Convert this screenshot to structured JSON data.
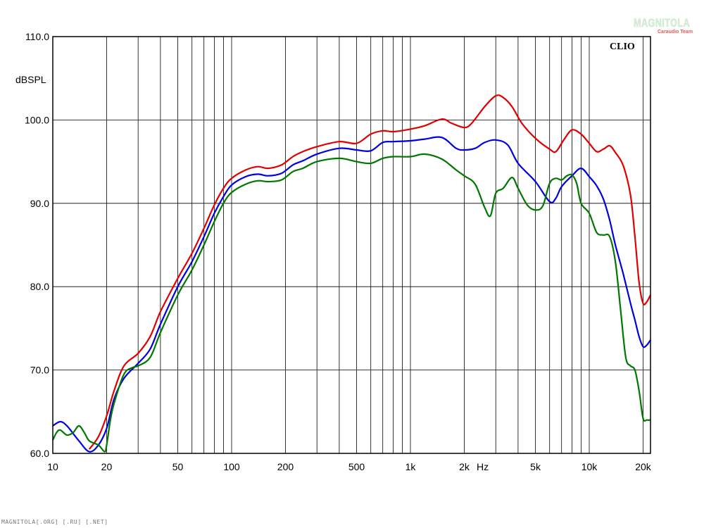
{
  "chart_data": {
    "type": "line",
    "brand": "CLIO",
    "ylabel": "dBSPL",
    "xunit": "Hz",
    "xscale": "log",
    "xlim": [
      10,
      22000
    ],
    "ylim": [
      60,
      110
    ],
    "grid": true,
    "y_ticks": [
      {
        "value": 60,
        "label": "60.0"
      },
      {
        "value": 70,
        "label": "70.0"
      },
      {
        "value": 80,
        "label": "80.0"
      },
      {
        "value": 90,
        "label": "90.0"
      },
      {
        "value": 100,
        "label": "100.0"
      },
      {
        "value": 110,
        "label": "110.0"
      }
    ],
    "x_ticks": [
      {
        "value": 10,
        "label": "10"
      },
      {
        "value": 20,
        "label": "20"
      },
      {
        "value": 50,
        "label": "50"
      },
      {
        "value": 100,
        "label": "100"
      },
      {
        "value": 200,
        "label": "200"
      },
      {
        "value": 500,
        "label": "500"
      },
      {
        "value": 1000,
        "label": "1k"
      },
      {
        "value": 2000,
        "label": "2k"
      },
      {
        "value": 5000,
        "label": "5k"
      },
      {
        "value": 10000,
        "label": "10k"
      },
      {
        "value": 20000,
        "label": "20k"
      }
    ],
    "x_gridlines": [
      20,
      30,
      40,
      50,
      60,
      70,
      80,
      90,
      100,
      200,
      300,
      400,
      500,
      600,
      700,
      800,
      900,
      1000,
      2000,
      3000,
      4000,
      5000,
      6000,
      7000,
      8000,
      9000,
      10000,
      20000
    ],
    "series": [
      {
        "color": "#e00000",
        "points": [
          [
            16,
            60.5
          ],
          [
            18,
            62
          ],
          [
            20,
            64.5
          ],
          [
            22,
            67.5
          ],
          [
            25,
            70.5
          ],
          [
            30,
            72
          ],
          [
            35,
            74
          ],
          [
            40,
            77
          ],
          [
            50,
            81
          ],
          [
            60,
            84
          ],
          [
            70,
            87
          ],
          [
            80,
            89.8
          ],
          [
            90,
            91.8
          ],
          [
            100,
            93
          ],
          [
            120,
            94
          ],
          [
            140,
            94.4
          ],
          [
            160,
            94.2
          ],
          [
            190,
            94.6
          ],
          [
            220,
            95.6
          ],
          [
            250,
            96.2
          ],
          [
            300,
            96.8
          ],
          [
            400,
            97.4
          ],
          [
            500,
            97.2
          ],
          [
            600,
            98.3
          ],
          [
            700,
            98.7
          ],
          [
            800,
            98.6
          ],
          [
            1000,
            98.9
          ],
          [
            1200,
            99.3
          ],
          [
            1500,
            100.1
          ],
          [
            1700,
            99.6
          ],
          [
            2000,
            99.1
          ],
          [
            2200,
            99.6
          ],
          [
            2600,
            101.6
          ],
          [
            3000,
            102.9
          ],
          [
            3300,
            102.7
          ],
          [
            3700,
            101.6
          ],
          [
            4200,
            99.6
          ],
          [
            5000,
            97.8
          ],
          [
            6000,
            96.5
          ],
          [
            6500,
            96.2
          ],
          [
            7200,
            97.6
          ],
          [
            8000,
            98.8
          ],
          [
            9000,
            98.3
          ],
          [
            10000,
            97.2
          ],
          [
            11000,
            96.2
          ],
          [
            12000,
            96.5
          ],
          [
            13000,
            96.9
          ],
          [
            14000,
            96.1
          ],
          [
            15500,
            94.5
          ],
          [
            17000,
            91
          ],
          [
            18000,
            86
          ],
          [
            19000,
            80.5
          ],
          [
            20000,
            78
          ],
          [
            21000,
            78.2
          ],
          [
            22000,
            79
          ]
        ]
      },
      {
        "color": "#0000e0",
        "points": [
          [
            10,
            63.3
          ],
          [
            11,
            63.8
          ],
          [
            12,
            63.3
          ],
          [
            14,
            61.5
          ],
          [
            16,
            60.2
          ],
          [
            18,
            61
          ],
          [
            20,
            63
          ],
          [
            22,
            66.5
          ],
          [
            25,
            69
          ],
          [
            30,
            70.8
          ],
          [
            35,
            72.5
          ],
          [
            40,
            75.5
          ],
          [
            50,
            80
          ],
          [
            60,
            83
          ],
          [
            70,
            86
          ],
          [
            80,
            88.8
          ],
          [
            90,
            90.8
          ],
          [
            100,
            92.2
          ],
          [
            120,
            93.2
          ],
          [
            140,
            93.5
          ],
          [
            160,
            93.3
          ],
          [
            190,
            93.6
          ],
          [
            220,
            94.6
          ],
          [
            250,
            95.1
          ],
          [
            300,
            95.9
          ],
          [
            400,
            96.6
          ],
          [
            500,
            96.4
          ],
          [
            600,
            96.3
          ],
          [
            700,
            97.3
          ],
          [
            800,
            97.4
          ],
          [
            1000,
            97.5
          ],
          [
            1200,
            97.7
          ],
          [
            1500,
            97.9
          ],
          [
            1800,
            96.6
          ],
          [
            2000,
            96.4
          ],
          [
            2300,
            96.6
          ],
          [
            2600,
            97.3
          ],
          [
            3000,
            97.6
          ],
          [
            3500,
            97
          ],
          [
            4000,
            94.8
          ],
          [
            5000,
            92.6
          ],
          [
            6000,
            90.2
          ],
          [
            6500,
            90.6
          ],
          [
            7000,
            92
          ],
          [
            8000,
            93.3
          ],
          [
            9000,
            94.2
          ],
          [
            10000,
            93.2
          ],
          [
            11000,
            92.1
          ],
          [
            12000,
            90.5
          ],
          [
            13000,
            88
          ],
          [
            14000,
            85
          ],
          [
            15500,
            81.5
          ],
          [
            17000,
            78
          ],
          [
            18000,
            76
          ],
          [
            19000,
            74
          ],
          [
            20000,
            72.8
          ],
          [
            21000,
            73
          ],
          [
            22000,
            73.6
          ]
        ]
      },
      {
        "color": "#007700",
        "points": [
          [
            10,
            61.6
          ],
          [
            10.5,
            62.5
          ],
          [
            11,
            62.8
          ],
          [
            12,
            62.2
          ],
          [
            13,
            62.5
          ],
          [
            14,
            63.3
          ],
          [
            15,
            62.5
          ],
          [
            16,
            61.5
          ],
          [
            18,
            61
          ],
          [
            19.5,
            60.2
          ],
          [
            20,
            61
          ],
          [
            21,
            64
          ],
          [
            22,
            66
          ],
          [
            25,
            69.5
          ],
          [
            28,
            70.3
          ],
          [
            30,
            70.5
          ],
          [
            35,
            71.5
          ],
          [
            40,
            74.5
          ],
          [
            50,
            79
          ],
          [
            60,
            82
          ],
          [
            70,
            85
          ],
          [
            80,
            87.8
          ],
          [
            90,
            90
          ],
          [
            100,
            91.3
          ],
          [
            120,
            92.3
          ],
          [
            140,
            92.7
          ],
          [
            160,
            92.6
          ],
          [
            190,
            92.8
          ],
          [
            220,
            93.8
          ],
          [
            250,
            94.2
          ],
          [
            300,
            95
          ],
          [
            400,
            95.4
          ],
          [
            500,
            95
          ],
          [
            600,
            94.8
          ],
          [
            700,
            95.4
          ],
          [
            800,
            95.6
          ],
          [
            1000,
            95.6
          ],
          [
            1200,
            95.9
          ],
          [
            1500,
            95.3
          ],
          [
            1800,
            94
          ],
          [
            2000,
            93.3
          ],
          [
            2300,
            92.3
          ],
          [
            2600,
            89.5
          ],
          [
            2800,
            88.5
          ],
          [
            3000,
            91.2
          ],
          [
            3300,
            91.8
          ],
          [
            3700,
            93.1
          ],
          [
            4000,
            91.8
          ],
          [
            4500,
            89.8
          ],
          [
            5000,
            89.2
          ],
          [
            5500,
            89.7
          ],
          [
            6000,
            92.4
          ],
          [
            6500,
            93
          ],
          [
            7000,
            92.8
          ],
          [
            7500,
            93.3
          ],
          [
            8000,
            93.4
          ],
          [
            8500,
            92.4
          ],
          [
            9000,
            90
          ],
          [
            10000,
            88.8
          ],
          [
            11000,
            86.5
          ],
          [
            12000,
            86.2
          ],
          [
            13000,
            86
          ],
          [
            14000,
            83
          ],
          [
            15000,
            77
          ],
          [
            16000,
            71.5
          ],
          [
            17000,
            70.5
          ],
          [
            18000,
            70
          ],
          [
            19000,
            67.5
          ],
          [
            20000,
            64.2
          ],
          [
            21000,
            64
          ],
          [
            22000,
            64
          ]
        ]
      }
    ]
  },
  "watermark": {
    "main": "MAGNITOLA",
    "sub": "Caraudio Team"
  },
  "footer": "MAGNITOLA[.ORG] [.RU] [.NET]"
}
